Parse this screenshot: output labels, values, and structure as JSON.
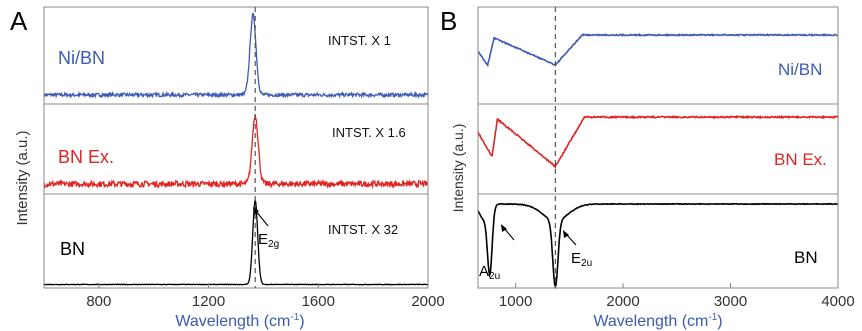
{
  "chart_data": [
    {
      "type": "line",
      "panel_label": "A",
      "xlabel": "Wavelength (cm",
      "xlabel_sup": "-1",
      "xlabel_close": ")",
      "ylabel": "Intensity (a.u.)",
      "xlim": [
        600,
        2000
      ],
      "xticks": [
        800,
        1200,
        1600,
        2000
      ],
      "ref_line_x": 1370,
      "series": [
        {
          "name": "Ni/BN",
          "color": "#3e5bb5",
          "intst_label": "INTST. X 1",
          "peak": 1362,
          "width": 11,
          "height": 0.88,
          "baseline": 0.1,
          "noise": 0.02
        },
        {
          "name": "BN Ex.",
          "color": "#e02424",
          "intst_label": "INTST. X 1.6",
          "peak": 1370,
          "width": 11,
          "height": 0.82,
          "baseline": 0.12,
          "noise": 0.035
        },
        {
          "name": "BN",
          "color": "#000000",
          "intst_label": "INTST. X 32",
          "peak": 1370,
          "width": 9,
          "height": 0.96,
          "baseline": 0.04,
          "noise": 0.003
        }
      ],
      "annotation": {
        "text": "E",
        "sub": "2g"
      }
    },
    {
      "type": "line",
      "panel_label": "B",
      "xlabel": "Wavelength (cm",
      "xlabel_sup": "-1",
      "xlabel_close": ")",
      "ylabel": "Intensity (a.u.)",
      "xlim": [
        650,
        4000
      ],
      "xticks": [
        1000,
        2000,
        3000,
        4000
      ],
      "ref_line_x": 1370,
      "series": [
        {
          "name": "Ni/BN",
          "color": "#3e5bb5"
        },
        {
          "name": "BN Ex.",
          "color": "#e02424"
        },
        {
          "name": "BN",
          "color": "#000000"
        }
      ],
      "annotations": [
        {
          "text": "A",
          "sub": "2u"
        },
        {
          "text": "E",
          "sub": "2u"
        }
      ]
    }
  ]
}
